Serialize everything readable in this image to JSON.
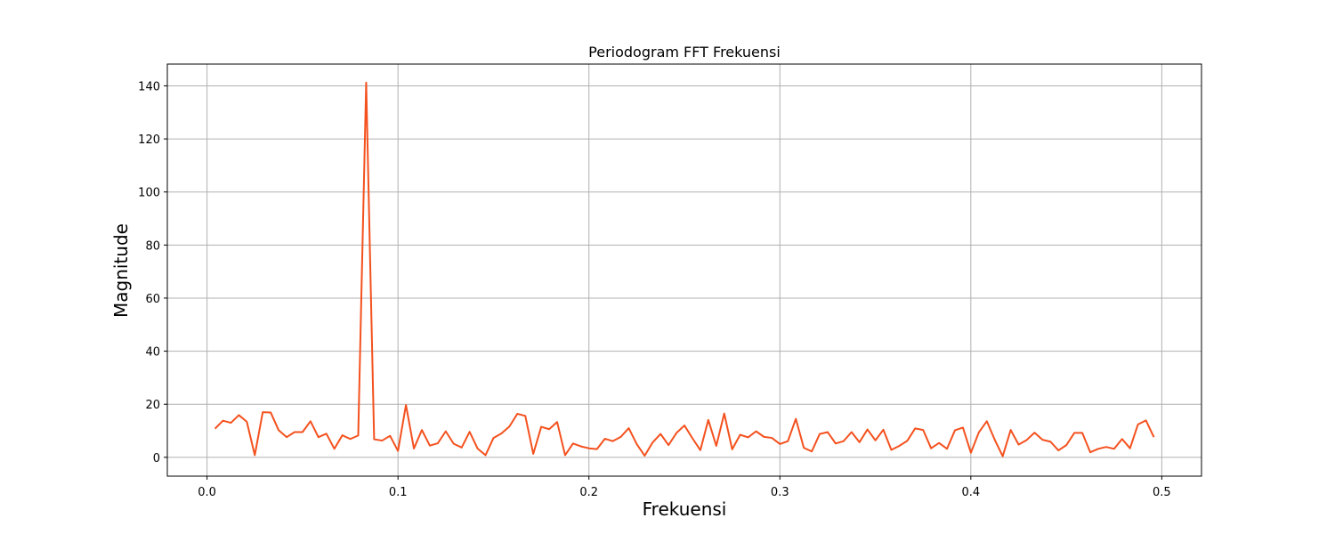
{
  "chart_data": {
    "type": "line",
    "title": "Periodogram FFT Frekuensi",
    "xlabel": "Frekuensi",
    "ylabel": "Magnitude",
    "xlim": [
      -0.0208,
      0.5208
    ],
    "ylim": [
      -7.1,
      148.2
    ],
    "xticks": [
      0.0,
      0.1,
      0.2,
      0.3,
      0.4,
      0.5
    ],
    "xtick_labels": [
      "0.0",
      "0.1",
      "0.2",
      "0.3",
      "0.4",
      "0.5"
    ],
    "yticks": [
      0,
      20,
      40,
      60,
      80,
      100,
      120,
      140
    ],
    "ytick_labels": [
      "0",
      "20",
      "40",
      "60",
      "80",
      "100",
      "120",
      "140"
    ],
    "grid": true,
    "line_color": "#f4511e",
    "x_step": 0.004167,
    "values": [
      10.8,
      13.8,
      13.0,
      15.9,
      13.4,
      0.8,
      17.0,
      16.9,
      10.2,
      7.6,
      9.5,
      9.5,
      13.6,
      7.6,
      8.9,
      3.2,
      8.3,
      6.9,
      8.2,
      141.2,
      6.8,
      6.3,
      8.1,
      2.4,
      19.7,
      3.3,
      10.3,
      4.4,
      5.3,
      9.8,
      5.1,
      3.7,
      9.6,
      3.3,
      0.8,
      7.3,
      9.0,
      11.6,
      16.4,
      15.6,
      1.3,
      11.5,
      10.6,
      13.3,
      0.8,
      5.2,
      4.1,
      3.4,
      3.1,
      7.0,
      6.1,
      7.7,
      11.0,
      5.0,
      0.6,
      5.6,
      8.8,
      4.6,
      9.2,
      12.0,
      7.2,
      2.7,
      14.1,
      4.3,
      16.5,
      3.0,
      8.5,
      7.5,
      9.8,
      7.7,
      7.3,
      5.0,
      6.1,
      14.5,
      3.6,
      2.2,
      8.8,
      9.5,
      5.2,
      6.1,
      9.5,
      5.7,
      10.5,
      6.4,
      10.4,
      2.8,
      4.3,
      6.2,
      10.9,
      10.3,
      3.4,
      5.4,
      3.2,
      10.2,
      11.2,
      1.7,
      9.4,
      13.6,
      6.6,
      0.4,
      10.3,
      4.8,
      6.5,
      9.3,
      6.6,
      5.9,
      2.6,
      4.6,
      9.2,
      9.2,
      1.9,
      3.2,
      3.9,
      3.2,
      6.9,
      3.4,
      12.4,
      13.9,
      7.6
    ]
  }
}
